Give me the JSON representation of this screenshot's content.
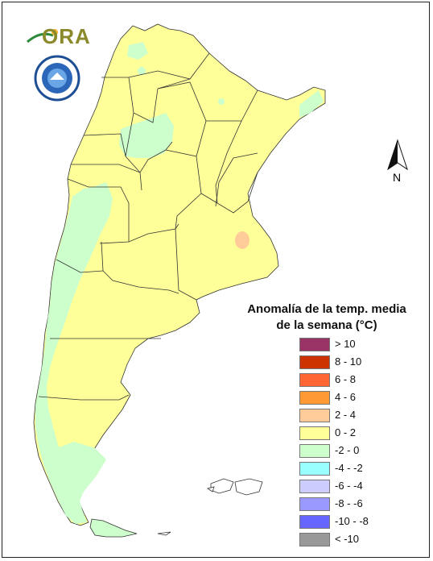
{
  "legend": {
    "title_line1": "Anomalía de la temp. media",
    "title_line2": "de la semana (°C)",
    "items": [
      {
        "label": "> 10",
        "color": "#993366"
      },
      {
        "label": "8 - 10",
        "color": "#cc3300"
      },
      {
        "label": "6 - 8",
        "color": "#ff6633"
      },
      {
        "label": "4 - 6",
        "color": "#ff9933"
      },
      {
        "label": "2 - 4",
        "color": "#ffcc99"
      },
      {
        "label": "0 - 2",
        "color": "#ffff99"
      },
      {
        "label": "-2 - 0",
        "color": "#ccffcc"
      },
      {
        "label": "-4 - -2",
        "color": "#99ffff"
      },
      {
        "label": "-6 - -4",
        "color": "#ccccff"
      },
      {
        "label": "-8 - -6",
        "color": "#9999ff"
      },
      {
        "label": "-10 - -8",
        "color": "#6666ff"
      },
      {
        "label": "< -10",
        "color": "#999999"
      }
    ]
  },
  "north": {
    "label": "N"
  },
  "logo": {
    "text": "ORA"
  }
}
